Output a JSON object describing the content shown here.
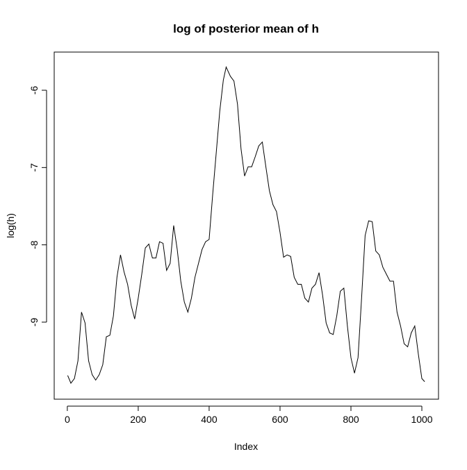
{
  "chart_data": {
    "type": "line",
    "title": "log of posterior mean of h",
    "x_label": "Index",
    "y_label": "log(h)",
    "color": "#000000",
    "x": [
      1,
      10,
      20,
      30,
      40,
      50,
      60,
      70,
      80,
      90,
      100,
      110,
      120,
      130,
      140,
      150,
      160,
      170,
      180,
      190,
      200,
      210,
      220,
      230,
      240,
      250,
      260,
      270,
      280,
      290,
      300,
      310,
      320,
      330,
      340,
      350,
      360,
      370,
      380,
      390,
      400,
      410,
      420,
      430,
      440,
      448,
      460,
      470,
      480,
      490,
      500,
      510,
      520,
      530,
      540,
      550,
      560,
      570,
      580,
      590,
      600,
      610,
      620,
      630,
      640,
      650,
      660,
      670,
      680,
      690,
      700,
      710,
      720,
      730,
      740,
      750,
      760,
      770,
      780,
      790,
      800,
      810,
      820,
      830,
      840,
      850,
      860,
      870,
      880,
      890,
      900,
      910,
      920,
      930,
      940,
      950,
      960,
      970,
      980,
      990,
      1000,
      1008
    ],
    "values": [
      -9.69,
      -9.79,
      -9.73,
      -9.5,
      -8.87,
      -9.01,
      -9.5,
      -9.68,
      -9.75,
      -9.68,
      -9.55,
      -9.19,
      -9.17,
      -8.92,
      -8.42,
      -8.13,
      -8.35,
      -8.51,
      -8.78,
      -8.96,
      -8.69,
      -8.38,
      -8.04,
      -7.99,
      -8.17,
      -8.17,
      -7.96,
      -7.98,
      -8.33,
      -8.24,
      -7.75,
      -8.06,
      -8.47,
      -8.74,
      -8.87,
      -8.69,
      -8.42,
      -8.24,
      -8.06,
      -7.96,
      -7.93,
      -7.35,
      -6.81,
      -6.27,
      -5.87,
      -5.7,
      -5.82,
      -5.88,
      -6.18,
      -6.76,
      -7.11,
      -6.99,
      -6.99,
      -6.86,
      -6.72,
      -6.67,
      -6.99,
      -7.3,
      -7.48,
      -7.57,
      -7.84,
      -8.16,
      -8.13,
      -8.15,
      -8.42,
      -8.51,
      -8.51,
      -8.69,
      -8.74,
      -8.56,
      -8.51,
      -8.36,
      -8.65,
      -9.01,
      -9.14,
      -9.16,
      -8.92,
      -8.6,
      -8.56,
      -9.05,
      -9.46,
      -9.66,
      -9.46,
      -8.69,
      -7.88,
      -7.69,
      -7.7,
      -8.08,
      -8.13,
      -8.29,
      -8.38,
      -8.47,
      -8.47,
      -8.87,
      -9.05,
      -9.28,
      -9.32,
      -9.14,
      -9.05,
      -9.41,
      -9.73,
      -9.77
    ],
    "xlim": [
      -37,
      1047
    ],
    "ylim": [
      -9.997,
      -5.506
    ],
    "xticks": [
      0,
      200,
      400,
      600,
      800,
      1000
    ],
    "yticks": [
      -9,
      -8,
      -7,
      -6
    ]
  }
}
